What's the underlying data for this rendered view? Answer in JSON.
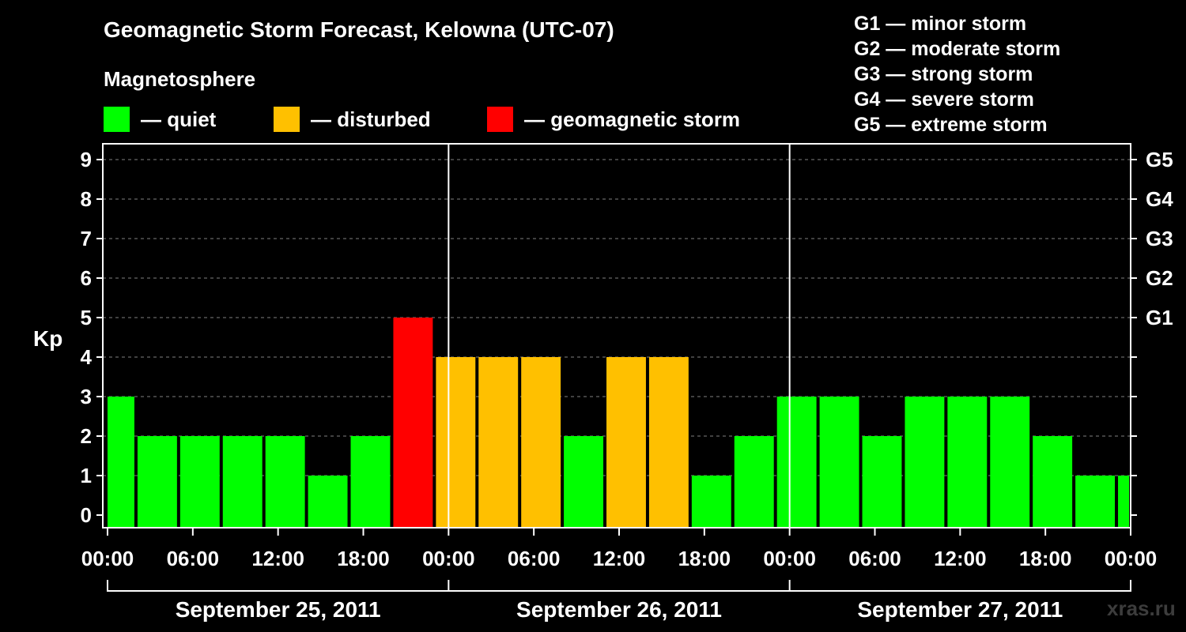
{
  "title": "Geomagnetic Storm Forecast, Kelowna (UTC-07)",
  "legend": {
    "heading": "Magnetosphere",
    "items": [
      {
        "label": "— quiet",
        "color": "#00ff00"
      },
      {
        "label": "— disturbed",
        "color": "#ffc000"
      },
      {
        "label": "— geomagnetic storm",
        "color": "#ff0000"
      }
    ]
  },
  "storm_scale": [
    "G1 — minor storm",
    "G2 — moderate storm",
    "G3 — strong storm",
    "G4 — severe storm",
    "G5 — extreme storm"
  ],
  "watermark": "xras.ru",
  "chart_data": {
    "type": "bar",
    "ylabel": "Kp",
    "ylim": [
      0,
      9
    ],
    "yticks": [
      0,
      1,
      2,
      3,
      4,
      5,
      6,
      7,
      8,
      9
    ],
    "right_axis_labels": [
      {
        "kp": 5,
        "label": "G1"
      },
      {
        "kp": 6,
        "label": "G2"
      },
      {
        "kp": 7,
        "label": "G3"
      },
      {
        "kp": 8,
        "label": "G4"
      },
      {
        "kp": 9,
        "label": "G5"
      }
    ],
    "x_tick_labels": [
      "00:00",
      "06:00",
      "12:00",
      "18:00",
      "00:00",
      "06:00",
      "12:00",
      "18:00",
      "00:00",
      "06:00",
      "12:00",
      "18:00",
      "00:00",
      "06:00",
      "12:00",
      "18:00",
      "00:00"
    ],
    "days": [
      "September 25, 2011",
      "September 26, 2011",
      "September 27, 2011"
    ],
    "grid": "horizontal dashed",
    "bar_interval_hours": 3,
    "values": [
      3,
      2,
      2,
      2,
      2,
      1,
      2,
      5,
      4,
      4,
      4,
      2,
      4,
      4,
      1,
      2,
      3,
      3,
      2,
      3,
      3,
      3,
      2,
      1,
      1
    ],
    "colors": {
      "quiet": "#00ff00",
      "disturbed": "#ffc000",
      "storm": "#ff0000"
    }
  }
}
